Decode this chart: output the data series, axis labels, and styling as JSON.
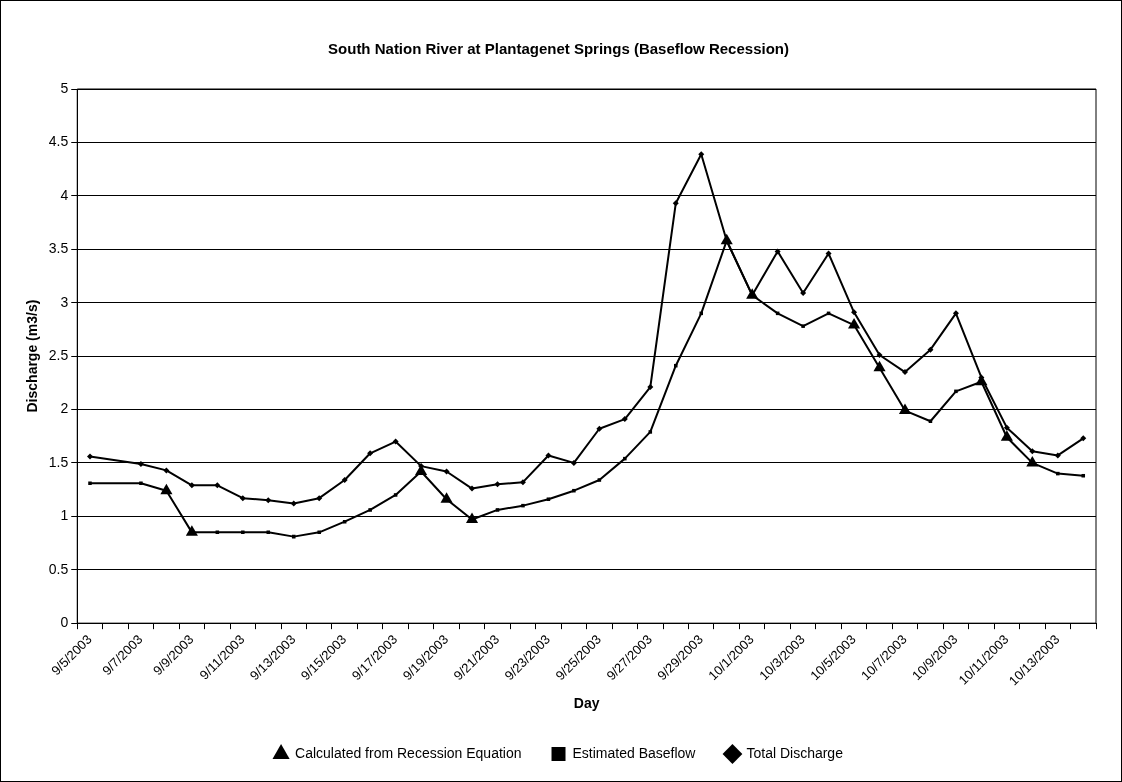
{
  "chart_data": {
    "type": "line",
    "title": "South Nation River at Plantagenet Springs (Baseflow Recession)",
    "xlabel": "Day",
    "ylabel": "Discharge (m3/s)",
    "categories": [
      "9/5/2003",
      null,
      "9/7/2003",
      null,
      "9/9/2003",
      null,
      "9/11/2003",
      null,
      "9/13/2003",
      null,
      "9/15/2003",
      null,
      "9/17/2003",
      null,
      "9/19/2003",
      null,
      "9/21/2003",
      null,
      "9/23/2003",
      null,
      "9/25/2003",
      null,
      "9/27/2003",
      null,
      "9/29/2003",
      null,
      "10/1/2003",
      null,
      "10/3/2003",
      null,
      "10/5/2003",
      null,
      "10/7/2003",
      null,
      "10/9/2003",
      null,
      "10/11/2003",
      null,
      "10/13/2003",
      null
    ],
    "series": [
      {
        "name": "Total Discharge",
        "color": "#000000",
        "marker": "diamond",
        "values": [
          1.56,
          null,
          1.49,
          1.43,
          1.29,
          1.29,
          1.17,
          1.15,
          1.12,
          1.17,
          1.34,
          1.59,
          1.7,
          1.47,
          1.42,
          1.26,
          1.3,
          1.32,
          1.57,
          1.5,
          1.82,
          1.91,
          2.21,
          3.93,
          4.39,
          3.58,
          3.07,
          3.48,
          3.09,
          3.46,
          2.91,
          2.51,
          2.35,
          2.56,
          2.9,
          2.3,
          1.83,
          1.61,
          1.57,
          1.73
        ]
      },
      {
        "name": "Estimated Baseflow",
        "color": "#000000",
        "marker": "square",
        "values": [
          1.31,
          null,
          1.31,
          1.24,
          0.85,
          0.85,
          0.85,
          0.85,
          0.81,
          0.85,
          0.95,
          1.06,
          1.2,
          1.42,
          1.16,
          0.97,
          1.06,
          1.1,
          1.16,
          1.24,
          1.34,
          1.54,
          1.79,
          2.41,
          2.9,
          3.58,
          3.07,
          2.9,
          2.78,
          2.9,
          2.79,
          2.39,
          1.99,
          1.89,
          2.17,
          2.26,
          1.74,
          1.5,
          1.4,
          1.38
        ]
      },
      {
        "name": "Calculated from Recession Equation",
        "type": "scatter",
        "color": "#000000",
        "marker": "triangle",
        "values": [
          null,
          null,
          null,
          1.24,
          0.85,
          null,
          null,
          null,
          null,
          null,
          null,
          null,
          null,
          1.42,
          1.16,
          0.97,
          null,
          null,
          null,
          null,
          null,
          null,
          null,
          null,
          null,
          3.58,
          3.07,
          null,
          null,
          null,
          2.79,
          2.39,
          1.99,
          null,
          null,
          2.26,
          1.74,
          1.5,
          null,
          null
        ]
      }
    ],
    "ylim": [
      0,
      5
    ],
    "yticks": [
      0,
      0.5,
      1,
      1.5,
      2,
      2.5,
      3,
      3.5,
      4,
      4.5,
      5
    ],
    "grid": "y",
    "legend": "bottom"
  }
}
